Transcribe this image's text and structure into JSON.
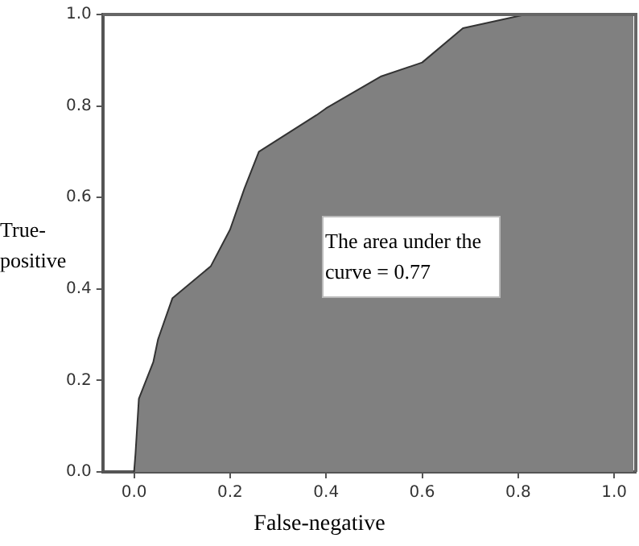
{
  "chart_data": {
    "type": "area",
    "xlabel": "False-negative",
    "ylabel": "True-positive",
    "x": [
      0,
      0.003,
      0.01,
      0.04,
      0.05,
      0.08,
      0.16,
      0.2,
      0.23,
      0.26,
      0.38,
      0.4,
      0.515,
      0.6,
      0.685,
      0.815,
      1.04
    ],
    "series": [
      {
        "color": "#808080",
        "values": [
          0,
          0.04,
          0.16,
          0.24,
          0.29,
          0.38,
          0.45,
          0.53,
          0.62,
          0.7,
          0.78,
          0.795,
          0.865,
          0.895,
          0.97,
          1,
          1
        ]
      }
    ],
    "xlim": [
      -0.065,
      1.045
    ],
    "ylim": [
      0,
      1
    ],
    "xticks": [
      {
        "value": 0,
        "label": "0.0"
      },
      {
        "value": 0.2,
        "label": "0.2"
      },
      {
        "value": 0.4,
        "label": "0.4"
      },
      {
        "value": 0.6,
        "label": "0.6"
      },
      {
        "value": 0.8,
        "label": "0.8"
      },
      {
        "value": 1,
        "label": "1.0"
      }
    ],
    "yticks": [
      {
        "value": 0,
        "label": "0.0"
      },
      {
        "value": 0.2,
        "label": "0.2"
      },
      {
        "value": 0.4,
        "label": "0.4"
      },
      {
        "value": 0.6,
        "label": "0.6"
      },
      {
        "value": 0.8,
        "label": "0.8"
      },
      {
        "value": 1,
        "label": "1.0"
      }
    ],
    "annotations": [
      "The area under the curve = 0.77"
    ],
    "grid": false,
    "legend": false,
    "marker": "none",
    "line_style": "solid"
  }
}
